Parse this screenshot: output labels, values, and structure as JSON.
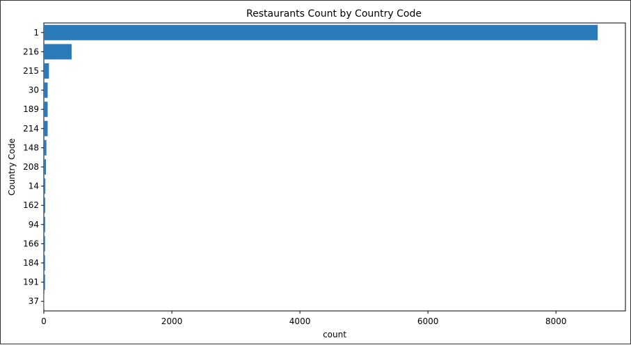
{
  "chart_data": {
    "type": "bar",
    "orientation": "horizontal",
    "title": "Restaurants Count by Country Code",
    "xlabel": "count",
    "ylabel": "Country Code",
    "categories": [
      "1",
      "216",
      "215",
      "30",
      "189",
      "214",
      "148",
      "208",
      "14",
      "162",
      "94",
      "166",
      "184",
      "191",
      "37"
    ],
    "values": [
      8652,
      434,
      80,
      60,
      60,
      60,
      40,
      34,
      24,
      22,
      21,
      20,
      20,
      20,
      4
    ],
    "xlim": [
      0,
      9085
    ],
    "xticks": [
      0,
      2000,
      4000,
      6000,
      8000
    ],
    "bar_color": "#2b7bba",
    "grid": false
  }
}
